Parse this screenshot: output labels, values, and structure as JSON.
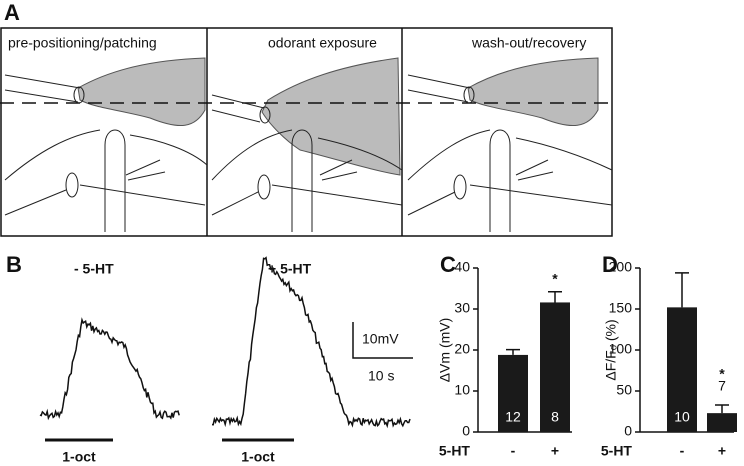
{
  "panels": {
    "A": {
      "label": "A",
      "titles": [
        "pre-positioning/patching",
        "odorant exposure",
        "wash-out/recovery"
      ]
    },
    "B": {
      "label": "B",
      "conditions": [
        "- 5-HT",
        "+ 5-HT"
      ],
      "scale_v": "10mV",
      "scale_t": "10 s",
      "stimuli": [
        "1-oct",
        "1-oct"
      ]
    }
  },
  "chart_data": [
    {
      "type": "bar",
      "panel_label": "C",
      "y_label": "ΔVm (mV)",
      "x_label": "5-HT",
      "categories": [
        "-",
        "+"
      ],
      "color": "#1a1a1a",
      "series": [
        {
          "values": [
            18.8,
            31.6
          ],
          "errors": [
            1.3,
            2.6
          ]
        }
      ],
      "n_labels": [
        "12",
        "8"
      ],
      "annotations": [
        null,
        "*"
      ],
      "ylim": [
        0,
        40
      ],
      "yticks": [
        0,
        10,
        20,
        30,
        40
      ]
    },
    {
      "type": "bar",
      "panel_label": "D",
      "y_label": "ΔF/Fₒ (%)",
      "x_label": "5-HT",
      "categories": [
        "-",
        "+"
      ],
      "color": "#1a1a1a",
      "series": [
        {
          "values": [
            152,
            23
          ],
          "errors": [
            42,
            10
          ]
        }
      ],
      "n_labels": [
        "10",
        "7"
      ],
      "annotations": [
        null,
        "*"
      ],
      "ylim": [
        0,
        200
      ],
      "yticks": [
        0,
        50,
        100,
        150,
        200
      ]
    }
  ]
}
